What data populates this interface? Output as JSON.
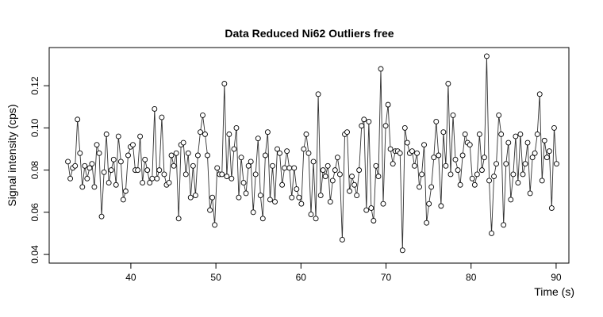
{
  "chart_data": {
    "type": "scatter",
    "title": "Data Reduced Ni62 Outliers free",
    "x_label": "Time (s)",
    "y_label": "Signal intensity (cps)",
    "series": [
      {
        "color": "#000000",
        "x": [
          32.6,
          32.88,
          33.17,
          33.45,
          33.73,
          34.02,
          34.3,
          34.58,
          34.86,
          35.15,
          35.43,
          35.71,
          36.0,
          36.28,
          36.56,
          36.85,
          37.13,
          37.41,
          37.69,
          37.98,
          38.26,
          38.54,
          38.83,
          39.11,
          39.39,
          39.68,
          39.96,
          40.24,
          40.52,
          40.81,
          41.09,
          41.37,
          41.66,
          41.94,
          42.22,
          42.51,
          42.79,
          43.07,
          43.35,
          43.64,
          43.92,
          44.2,
          44.49,
          44.77,
          45.05,
          45.34,
          45.62,
          45.9,
          46.18,
          46.47,
          46.75,
          47.03,
          47.32,
          47.6,
          47.88,
          48.17,
          48.45,
          48.73,
          49.01,
          49.3,
          49.58,
          49.86,
          50.15,
          50.43,
          50.71,
          51.0,
          51.28,
          51.56,
          51.84,
          52.13,
          52.41,
          52.69,
          52.98,
          53.26,
          53.54,
          53.83,
          54.11,
          54.39,
          54.67,
          54.96,
          55.24,
          55.52,
          55.81,
          56.09,
          56.37,
          56.66,
          56.94,
          57.22,
          57.5,
          57.79,
          58.07,
          58.35,
          58.64,
          58.92,
          59.2,
          59.49,
          59.77,
          60.05,
          60.33,
          60.62,
          60.9,
          61.18,
          61.47,
          61.75,
          62.03,
          62.32,
          62.6,
          62.88,
          63.16,
          63.45,
          63.73,
          64.01,
          64.3,
          64.58,
          64.86,
          65.15,
          65.43,
          65.71,
          65.99,
          66.28,
          66.56,
          66.84,
          67.13,
          67.41,
          67.69,
          67.98,
          68.26,
          68.54,
          68.82,
          69.11,
          69.39,
          69.67,
          69.96,
          70.24,
          70.52,
          70.81,
          71.09,
          71.37,
          71.65,
          71.94,
          72.22,
          72.5,
          72.79,
          73.07,
          73.35,
          73.64,
          73.92,
          74.2,
          74.48,
          74.77,
          75.05,
          75.33,
          75.62,
          75.9,
          76.18,
          76.47,
          76.75,
          77.03,
          77.31,
          77.6,
          77.88,
          78.16,
          78.45,
          78.73,
          79.01,
          79.3,
          79.58,
          79.86,
          80.14,
          80.43,
          80.71,
          80.99,
          81.28,
          81.56,
          81.84,
          82.13,
          82.41,
          82.69,
          82.97,
          83.26,
          83.54,
          83.82,
          84.11,
          84.39,
          84.67,
          84.96,
          85.24,
          85.52,
          85.8,
          86.09,
          86.37,
          86.65,
          86.94,
          87.22,
          87.5,
          87.79,
          88.07,
          88.35,
          88.63,
          88.92,
          89.2,
          89.48,
          89.77,
          90.05
        ],
        "values": [
          0.084,
          0.076,
          0.081,
          0.082,
          0.104,
          0.088,
          0.072,
          0.082,
          0.076,
          0.081,
          0.083,
          0.072,
          0.092,
          0.088,
          0.058,
          0.079,
          0.097,
          0.074,
          0.08,
          0.085,
          0.073,
          0.096,
          0.084,
          0.066,
          0.07,
          0.087,
          0.091,
          0.092,
          0.08,
          0.08,
          0.096,
          0.074,
          0.085,
          0.08,
          0.074,
          0.076,
          0.109,
          0.076,
          0.08,
          0.105,
          0.078,
          0.073,
          0.074,
          0.087,
          0.082,
          0.088,
          0.057,
          0.092,
          0.093,
          0.078,
          0.088,
          0.067,
          0.082,
          0.068,
          0.087,
          0.098,
          0.106,
          0.097,
          0.087,
          0.061,
          0.067,
          0.054,
          0.081,
          0.078,
          0.078,
          0.121,
          0.077,
          0.097,
          0.076,
          0.09,
          0.1,
          0.067,
          0.086,
          0.074,
          0.069,
          0.082,
          0.084,
          0.06,
          0.078,
          0.095,
          0.068,
          0.057,
          0.087,
          0.098,
          0.066,
          0.082,
          0.065,
          0.09,
          0.088,
          0.073,
          0.081,
          0.089,
          0.081,
          0.067,
          0.081,
          0.071,
          0.067,
          0.064,
          0.09,
          0.097,
          0.088,
          0.059,
          0.084,
          0.057,
          0.116,
          0.068,
          0.08,
          0.077,
          0.082,
          0.065,
          0.075,
          0.08,
          0.086,
          0.078,
          0.047,
          0.097,
          0.098,
          0.07,
          0.077,
          0.073,
          0.068,
          0.08,
          0.101,
          0.104,
          0.061,
          0.103,
          0.062,
          0.056,
          0.082,
          0.077,
          0.128,
          0.064,
          0.101,
          0.111,
          0.09,
          0.083,
          0.089,
          0.089,
          0.088,
          0.042,
          0.1,
          0.093,
          0.088,
          0.089,
          0.082,
          0.088,
          0.072,
          0.078,
          0.092,
          0.055,
          0.064,
          0.072,
          0.086,
          0.103,
          0.087,
          0.063,
          0.098,
          0.082,
          0.121,
          0.078,
          0.106,
          0.085,
          0.08,
          0.073,
          0.087,
          0.097,
          0.093,
          0.092,
          0.076,
          0.073,
          0.078,
          0.097,
          0.08,
          0.086,
          0.134,
          0.075,
          0.05,
          0.077,
          0.083,
          0.106,
          0.097,
          0.054,
          0.083,
          0.093,
          0.066,
          0.078,
          0.096,
          0.074,
          0.097,
          0.078,
          0.083,
          0.093,
          0.069,
          0.086,
          0.088,
          0.097,
          0.116,
          0.075,
          0.094,
          0.086,
          0.089,
          0.062,
          0.1,
          0.083
        ]
      }
    ],
    "xlim": [
      30.4,
      91.5
    ],
    "xticks": [
      40,
      50,
      60,
      70,
      80,
      90
    ],
    "ylim": [
      0.0359,
      0.1381
    ],
    "yticks": [
      0.04,
      0.06,
      0.08,
      {
        "value": 0.1,
        "label": "0.10"
      },
      0.12
    ]
  }
}
